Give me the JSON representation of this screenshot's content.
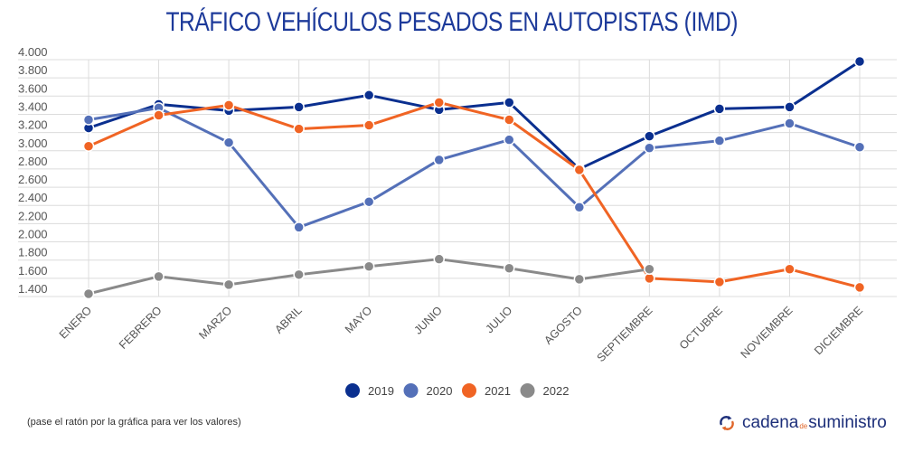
{
  "chart_data": {
    "type": "line",
    "title": "TRÁFICO VEHÍCULOS PESADOS EN AUTOPISTAS (IMD)",
    "xlabel": "",
    "ylabel": "",
    "categories": [
      "ENERO",
      "FEBRERO",
      "MARZO",
      "ABRIL",
      "MAYO",
      "JUNIO",
      "JULIO",
      "AGOSTO",
      "SEPTIEMBRE",
      "OCTUBRE",
      "NOVIEMBRE",
      "DICIEMBRE"
    ],
    "ylim": [
      1400,
      4000
    ],
    "yticks": [
      1400,
      1600,
      1800,
      2000,
      2200,
      2400,
      2600,
      2800,
      3000,
      3200,
      3400,
      3600,
      3800,
      4000
    ],
    "ytick_labels": [
      "1.400",
      "1.600",
      "1.800",
      "2.000",
      "2.200",
      "2.400",
      "2.600",
      "2.800",
      "3.000",
      "3.200",
      "3.400",
      "3.600",
      "3.800",
      "4.000"
    ],
    "grid": true,
    "legend_position": "bottom",
    "series": [
      {
        "name": "2019",
        "color": "#0a2f8f",
        "values": [
          3250,
          3510,
          3440,
          3480,
          3610,
          3450,
          3530,
          2800,
          3160,
          3460,
          3480,
          3980
        ]
      },
      {
        "name": "2020",
        "color": "#5470b8",
        "values": [
          3340,
          3470,
          3090,
          2160,
          2440,
          2900,
          3120,
          2380,
          3030,
          3110,
          3300,
          3040
        ]
      },
      {
        "name": "2021",
        "color": "#f06424",
        "values": [
          3050,
          3390,
          3500,
          3240,
          3280,
          3530,
          3340,
          2790,
          1600,
          1560,
          1700,
          1500
        ]
      },
      {
        "name": "2022",
        "color": "#8a8a8a",
        "values": [
          1430,
          1620,
          1530,
          1640,
          1730,
          1810,
          1710,
          1590,
          1700,
          null,
          null,
          null
        ]
      }
    ]
  },
  "footer": {
    "note": "(pase el ratón por la gráfica para ver los valores)",
    "logo_part1": "cadena",
    "logo_part2": "de",
    "logo_part3": "suministro"
  }
}
